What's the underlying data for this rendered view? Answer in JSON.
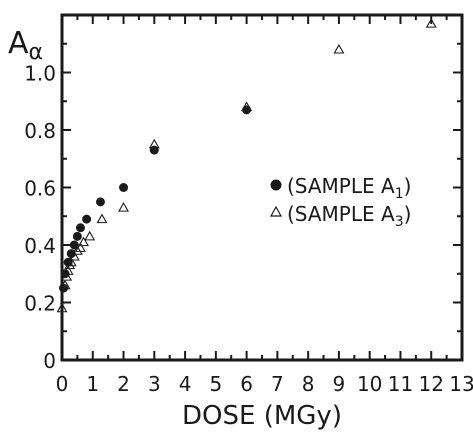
{
  "chart_data": {
    "type": "scatter",
    "ylabel": "A",
    "ylabel_sub": "α",
    "xlabel": "DOSE (MGy)",
    "xlim": [
      0,
      13
    ],
    "ylim": [
      0,
      1.2
    ],
    "x_ticks": [
      "0",
      "1",
      "2",
      "3",
      "4",
      "5",
      "6",
      "7",
      "8",
      "9",
      "10",
      "11",
      "12",
      "13"
    ],
    "y_ticks": [
      "0",
      "0.2",
      "0.4",
      "0.6",
      "0.8",
      "1.0"
    ],
    "y_tick_values": [
      0,
      0.2,
      0.4,
      0.6,
      0.8,
      1.0
    ],
    "legend_position": "right",
    "series": [
      {
        "name": "(SAMPLE A1)",
        "name_main": "(SAMPLE A",
        "name_sub": "1",
        "name_end": ")",
        "marker": "filled-circle",
        "points": [
          {
            "x": 0.05,
            "y": 0.25
          },
          {
            "x": 0.1,
            "y": 0.3
          },
          {
            "x": 0.2,
            "y": 0.34
          },
          {
            "x": 0.3,
            "y": 0.37
          },
          {
            "x": 0.4,
            "y": 0.4
          },
          {
            "x": 0.5,
            "y": 0.43
          },
          {
            "x": 0.6,
            "y": 0.46
          },
          {
            "x": 0.8,
            "y": 0.49
          },
          {
            "x": 1.25,
            "y": 0.55
          },
          {
            "x": 2.0,
            "y": 0.6
          },
          {
            "x": 3.0,
            "y": 0.73
          },
          {
            "x": 6.0,
            "y": 0.87
          }
        ]
      },
      {
        "name": "(SAMPLE A3)",
        "name_main": "(SAMPLE A",
        "name_sub": "3",
        "name_end": ")",
        "marker": "open-triangle",
        "points": [
          {
            "x": 0.0,
            "y": 0.18
          },
          {
            "x": 0.1,
            "y": 0.26
          },
          {
            "x": 0.15,
            "y": 0.29
          },
          {
            "x": 0.2,
            "y": 0.31
          },
          {
            "x": 0.25,
            "y": 0.33
          },
          {
            "x": 0.3,
            "y": 0.34
          },
          {
            "x": 0.4,
            "y": 0.36
          },
          {
            "x": 0.5,
            "y": 0.38
          },
          {
            "x": 0.6,
            "y": 0.39
          },
          {
            "x": 0.7,
            "y": 0.41
          },
          {
            "x": 0.9,
            "y": 0.43
          },
          {
            "x": 1.3,
            "y": 0.49
          },
          {
            "x": 2.0,
            "y": 0.53
          },
          {
            "x": 3.0,
            "y": 0.75
          },
          {
            "x": 6.0,
            "y": 0.88
          },
          {
            "x": 9.0,
            "y": 1.08
          },
          {
            "x": 12.0,
            "y": 1.17
          }
        ]
      }
    ]
  }
}
